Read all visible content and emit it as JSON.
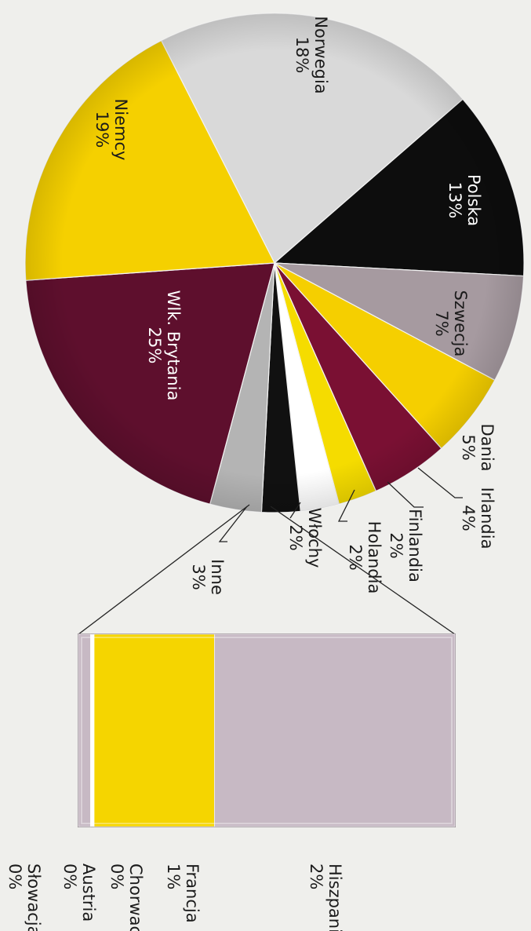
{
  "chart_data": [
    {
      "type": "pie",
      "orientation": "rotated 90 degrees clockwise",
      "slices": [
        {
          "label": "Norwegia",
          "value_label": "18%",
          "value": 18,
          "color": "#d9d9d9",
          "text_color": "#1a1a1a"
        },
        {
          "label": "Polska",
          "value_label": "13%",
          "value": 13,
          "color": "#0d0d0d",
          "text_color": "#ffffff"
        },
        {
          "label": "Szwecja",
          "value_label": "7%",
          "value": 7,
          "color": "#a69aa0",
          "text_color": "#1a1a1a"
        },
        {
          "label": "Dania",
          "value_label": "5%",
          "value": 5,
          "color": "#f5cf00",
          "text_color": "#1a1a1a"
        },
        {
          "label": "Irlandia",
          "value_label": "4%",
          "value": 4,
          "color": "#7a1033",
          "text_color": "#1a1a1a"
        },
        {
          "label": "Finlandia",
          "value_label": "2%",
          "value": 2,
          "color": "#f5dc00",
          "text_color": "#1a1a1a"
        },
        {
          "label": "Holandia",
          "value_label": "2%",
          "value": 2,
          "color": "#ffffff",
          "text_color": "#1a1a1a"
        },
        {
          "label": "Włochy",
          "value_label": "2%",
          "value": 2,
          "color": "#111111",
          "text_color": "#1a1a1a"
        },
        {
          "label": "Inne",
          "value_label": "3%",
          "value": 3,
          "color": "#b4b4b4",
          "text_color": "#1a1a1a"
        },
        {
          "label": "Wlk. Brytania",
          "value_label": "25%",
          "value": 25,
          "color": "#5e0f2d",
          "text_color": "#ffffff"
        },
        {
          "label": "Niemcy",
          "value_label": "19%",
          "value": 19,
          "color": "#f5d000",
          "text_color": "#1a1a1a"
        }
      ]
    },
    {
      "type": "bar",
      "subtype": "stacked-100",
      "breakdown_of": "Inne",
      "segments": [
        {
          "label": "Hiszpania",
          "value_label": "2%",
          "value": 2,
          "color": "#c7b9c4"
        },
        {
          "label": "Francja",
          "value_label": "1%",
          "value": 1,
          "color": "#f5d500"
        },
        {
          "label": "Chorwacja",
          "value_label": "0%",
          "value": 0.03,
          "color": "#ffffff"
        },
        {
          "label": "Austria",
          "value_label": "0%",
          "value": 0.1,
          "color": "#c7b9c4"
        },
        {
          "label": "Słowacja",
          "value_label": "0%",
          "value": 0,
          "color": "#c7b9c4"
        }
      ]
    }
  ]
}
